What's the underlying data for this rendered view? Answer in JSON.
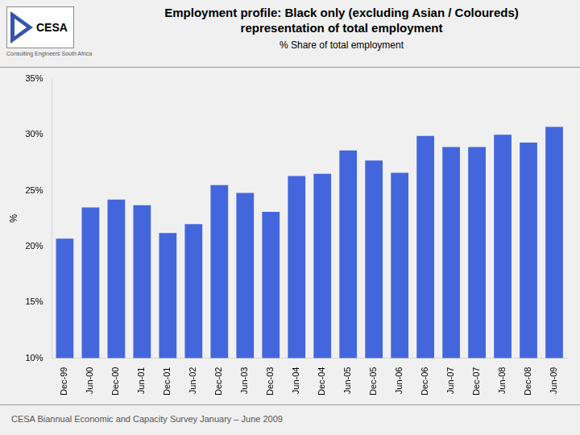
{
  "chart_data": {
    "type": "bar",
    "title": "Employment profile: Black only (excluding Asian / Coloureds)\nrepresentation of total employment",
    "subtitle": "% Share of total employment",
    "ylabel": "%",
    "annotations": [
      "CESA",
      "Consulting Engineers South Africa",
      "CESA Biannual Economic and Capacity Survey January – June 2009"
    ],
    "categories": [
      "Dec-99",
      "Jun-00",
      "Dec-00",
      "Jun-01",
      "Dec-01",
      "Jun-02",
      "Dec-02",
      "Jun-03",
      "Dec-03",
      "Jun-04",
      "Dec-04",
      "Jun-05",
      "Dec-05",
      "Jun-06",
      "Dec-06",
      "Jun-07",
      "Dec-07",
      "Jun-08",
      "Dec-08",
      "Jun-09"
    ],
    "values": [
      20.7,
      23.5,
      24.2,
      23.7,
      21.2,
      22.0,
      25.5,
      24.8,
      23.1,
      26.3,
      26.5,
      28.6,
      27.7,
      26.6,
      29.9,
      28.9,
      28.9,
      30.0,
      29.3,
      30.7
    ],
    "color": "#4466DD",
    "ylim": [
      10,
      35
    ],
    "yticks": [
      {
        "value": 10,
        "label": "10%"
      },
      {
        "value": 15,
        "label": "15%"
      },
      {
        "value": 20,
        "label": "20%"
      },
      {
        "value": 25,
        "label": "25%"
      },
      {
        "value": 30,
        "label": "30%"
      },
      {
        "value": 35,
        "label": "35%"
      }
    ],
    "grid": false
  }
}
